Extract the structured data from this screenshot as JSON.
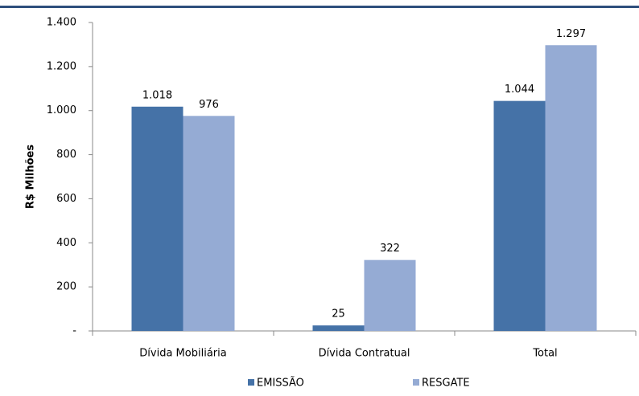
{
  "chart_data": {
    "type": "bar",
    "y_axis_label": "R$ Milhões",
    "categories": [
      "Dívida Mobiliária",
      "Dívida Contratual",
      "Total"
    ],
    "series": [
      {
        "name": "EMISSÃO",
        "color": "#4572a7",
        "values": [
          1018,
          25,
          1044
        ],
        "value_labels": [
          "1.018",
          "25",
          "1.044"
        ]
      },
      {
        "name": "RESGATE",
        "color": "#95abd4",
        "values": [
          976,
          322,
          1297
        ],
        "value_labels": [
          "976",
          "322",
          "1.297"
        ]
      }
    ],
    "ylim": [
      0,
      1400
    ],
    "yticks": [
      {
        "value": 0,
        "label": "-"
      },
      200,
      400,
      600,
      800,
      {
        "value": 1000,
        "label": "1.000"
      },
      {
        "value": 1200,
        "label": "1.200"
      },
      {
        "value": 1400,
        "label": "1.400"
      }
    ],
    "grid": false,
    "legend": "bottom"
  }
}
